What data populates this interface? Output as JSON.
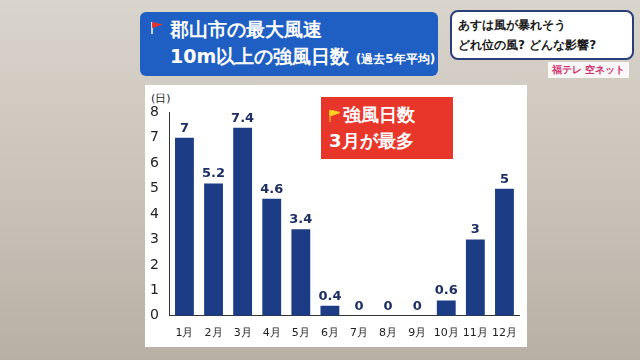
{
  "chart_data": {
    "type": "bar",
    "title": "郡山市の最大風速",
    "subtitle": [
      "10m以上の強風日数",
      "(過去5年平均)"
    ],
    "annotation": [
      "強風日数",
      "3月が最多"
    ],
    "banner": [
      "あすは風が暴れそう",
      "どれ位の風? どんな影響?"
    ],
    "brand": "福テレ 空ネット",
    "ylabel": "(日)",
    "categories": [
      "1月",
      "2月",
      "3月",
      "4月",
      "5月",
      "6月",
      "7月",
      "8月",
      "9月",
      "10月",
      "11月",
      "12月"
    ],
    "values": [
      7,
      5.2,
      7.4,
      4.6,
      3.4,
      0.4,
      0,
      0,
      0,
      0.6,
      3,
      5
    ],
    "color": "#1d3c86",
    "ylim": [
      0,
      8
    ],
    "yticks": [
      0,
      1,
      2,
      3,
      4,
      5,
      6,
      7,
      8
    ],
    "grid": false,
    "data_labels": true
  }
}
